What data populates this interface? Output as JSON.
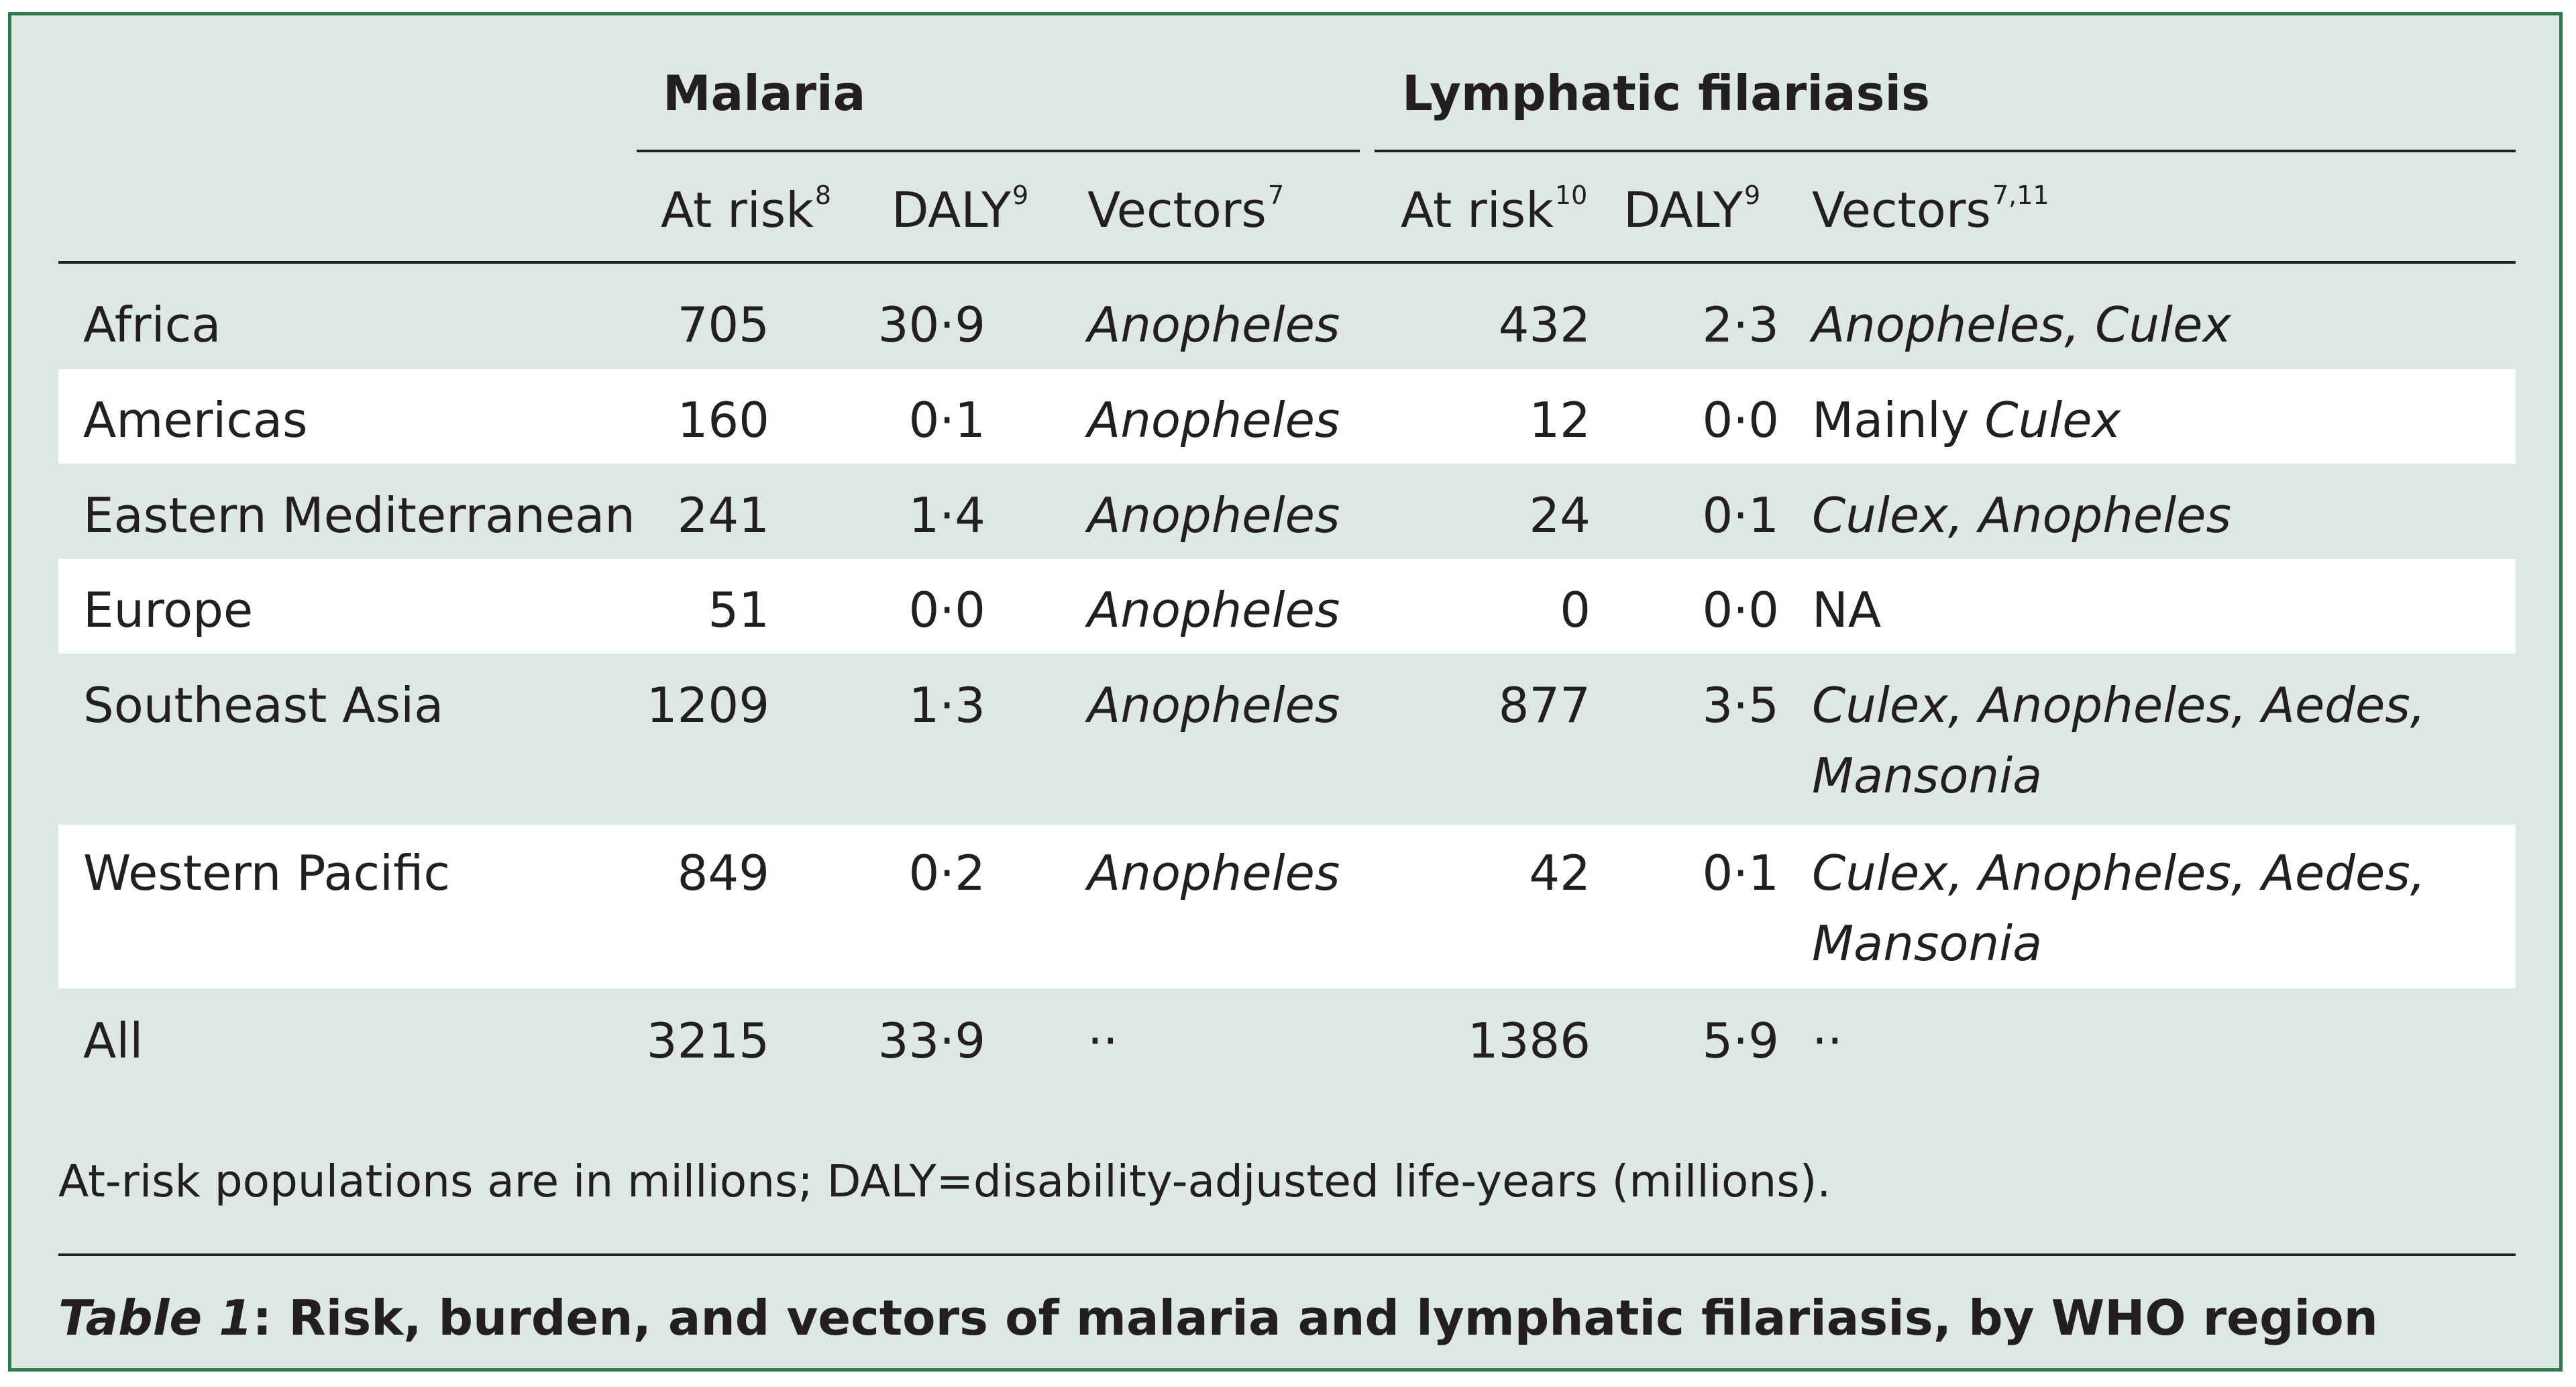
{
  "header": {
    "malaria": "Malaria",
    "lf": "Lymphatic filariasis",
    "malaria_cols": [
      {
        "label": "At risk",
        "ref": "8"
      },
      {
        "label": "DALY",
        "ref": "9"
      },
      {
        "label": "Vectors",
        "ref": "7"
      }
    ],
    "lf_cols": [
      {
        "label": "At risk",
        "ref": "10"
      },
      {
        "label": "DALY",
        "ref": "9"
      },
      {
        "label": "Vectors",
        "ref": "7,11"
      }
    ]
  },
  "rows": [
    {
      "region": "Africa",
      "m_risk": "705",
      "m_daly": "30·9",
      "m_vec": "Anopheles",
      "l_risk": "432",
      "l_daly": "2·3",
      "l_vec1": "Anopheles, Culex",
      "l_vec2": ""
    },
    {
      "region": "Americas",
      "m_risk": "160",
      "m_daly": "0·1",
      "m_vec": "Anopheles",
      "l_risk": "12",
      "l_daly": "0·0",
      "l_vec_pre": "Mainly ",
      "l_vec1": "Culex",
      "l_vec2": ""
    },
    {
      "region": "Eastern Mediterranean",
      "m_risk": "241",
      "m_daly": "1·4",
      "m_vec": "Anopheles",
      "l_risk": "24",
      "l_daly": "0·1",
      "l_vec1": "Culex, Anopheles",
      "l_vec2": ""
    },
    {
      "region": "Europe",
      "m_risk": "51",
      "m_daly": "0·0",
      "m_vec": "Anopheles",
      "l_risk": "0",
      "l_daly": "0·0",
      "l_vec_plain": "NA"
    },
    {
      "region": "Southeast Asia",
      "m_risk": "1209",
      "m_daly": "1·3",
      "m_vec": "Anopheles",
      "l_risk": "877",
      "l_daly": "3·5",
      "l_vec1": "Culex, Anopheles, Aedes,",
      "l_vec2": "Mansonia"
    },
    {
      "region": "Western Pacific",
      "m_risk": "849",
      "m_daly": "0·2",
      "m_vec": "Anopheles",
      "l_risk": "42",
      "l_daly": "0·1",
      "l_vec1": "Culex, Anopheles, Aedes,",
      "l_vec2": "Mansonia"
    },
    {
      "region": "All",
      "m_risk": "3215",
      "m_daly": "33·9",
      "m_vec_plain": "··",
      "l_risk": "1386",
      "l_daly": "5·9",
      "l_vec_plain": "··"
    }
  ],
  "note": "At-risk populations are in millions; DALY=disability-adjusted life-years (millions).",
  "caption": {
    "label": "Table 1",
    "text": ": Risk, burden, and vectors of malaria and lymphatic filariasis, by WHO region"
  }
}
